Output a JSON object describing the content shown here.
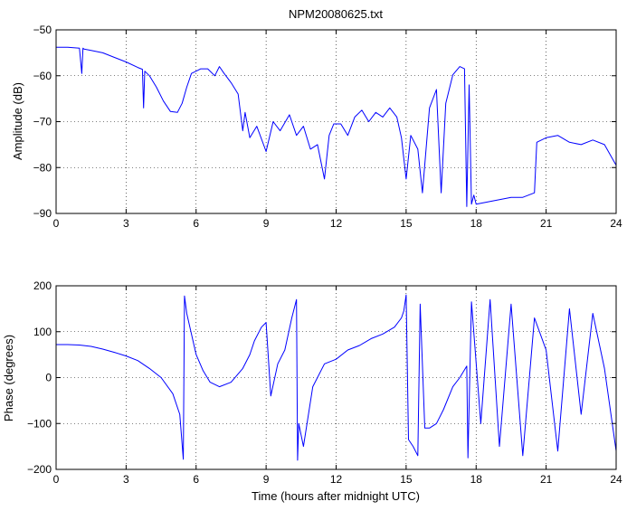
{
  "figure": {
    "title": "NPM20080625.txt",
    "xlabel": "Time (hours after midnight UTC)"
  },
  "chart_data": [
    {
      "type": "line",
      "title": "NPM20080625.txt",
      "xlabel": "",
      "ylabel": "Amplitude (dB)",
      "xlim": [
        0,
        24
      ],
      "ylim": [
        -90,
        -50
      ],
      "xticks": [
        0,
        3,
        6,
        9,
        12,
        15,
        18,
        21,
        24
      ],
      "yticks": [
        -90,
        -80,
        -70,
        -60,
        -50
      ],
      "grid": "dotted",
      "line_color": "#0000ff",
      "series": [
        {
          "x": [
            0,
            0.5,
            1.0,
            1.1,
            1.15,
            1.2,
            1.5,
            2.0,
            2.5,
            3.0,
            3.5,
            3.7,
            3.75,
            3.8,
            4.0,
            4.3,
            4.6,
            4.9,
            5.2,
            5.4,
            5.6,
            5.8,
            6.0,
            6.2,
            6.5,
            6.8,
            7.0,
            7.2,
            7.5,
            7.8,
            8.0,
            8.1,
            8.3,
            8.6,
            9.0,
            9.3,
            9.6,
            10.0,
            10.3,
            10.6,
            10.9,
            11.2,
            11.5,
            11.7,
            11.9,
            12.2,
            12.5,
            12.8,
            13.1,
            13.4,
            13.7,
            14.0,
            14.3,
            14.6,
            14.8,
            15.0,
            15.2,
            15.5,
            15.7,
            16.0,
            16.3,
            16.5,
            16.7,
            17.0,
            17.3,
            17.5,
            17.6,
            17.7,
            17.8,
            17.9,
            18.0,
            18.5,
            19.0,
            19.5,
            20.0,
            20.5,
            20.6,
            21.0,
            21.5,
            22.0,
            22.5,
            23.0,
            23.5,
            24.0
          ],
          "y": [
            -53.8,
            -53.8,
            -54.0,
            -59.5,
            -54.0,
            -54.2,
            -54.5,
            -55.0,
            -56.0,
            -57.0,
            -58.2,
            -58.6,
            -67.0,
            -59.0,
            -60.0,
            -62.5,
            -65.5,
            -67.8,
            -68.0,
            -66.0,
            -62.5,
            -59.5,
            -59.0,
            -58.5,
            -58.5,
            -60.0,
            -58.0,
            -59.5,
            -61.5,
            -64.0,
            -72.0,
            -68.0,
            -73.5,
            -71.0,
            -76.5,
            -70.0,
            -72.0,
            -68.5,
            -73.0,
            -71.0,
            -76.0,
            -75.0,
            -82.5,
            -73.0,
            -70.5,
            -70.5,
            -73.0,
            -69.0,
            -67.5,
            -70.0,
            -68.0,
            -69.0,
            -67.0,
            -69.0,
            -73.5,
            -82.5,
            -73.0,
            -76.0,
            -85.5,
            -67.0,
            -63.0,
            -85.5,
            -66.0,
            -59.8,
            -58.0,
            -58.5,
            -88.5,
            -62.0,
            -88.0,
            -86.0,
            -88.0,
            -87.5,
            -87.0,
            -86.5,
            -86.5,
            -85.5,
            -74.5,
            -73.5,
            -73.0,
            -74.5,
            -75.0,
            -74.0,
            -75.0,
            -79.5
          ]
        }
      ]
    },
    {
      "type": "line",
      "title": "",
      "xlabel": "Time (hours after midnight UTC)",
      "ylabel": "Phase (degrees)",
      "xlim": [
        0,
        24
      ],
      "ylim": [
        -200,
        200
      ],
      "xticks": [
        0,
        3,
        6,
        9,
        12,
        15,
        18,
        21,
        24
      ],
      "yticks": [
        -200,
        -100,
        0,
        100,
        200
      ],
      "grid": "dotted",
      "line_color": "#0000ff",
      "series": [
        {
          "x": [
            0,
            0.5,
            1.0,
            1.5,
            2.0,
            2.5,
            3.0,
            3.5,
            4.0,
            4.5,
            5.0,
            5.3,
            5.45,
            5.5,
            5.6,
            5.8,
            6.0,
            6.3,
            6.6,
            7.0,
            7.5,
            8.0,
            8.3,
            8.5,
            8.8,
            9.0,
            9.2,
            9.5,
            9.8,
            10.1,
            10.3,
            10.35,
            10.4,
            10.6,
            11.0,
            11.5,
            12.0,
            12.5,
            13.0,
            13.5,
            14.0,
            14.5,
            14.8,
            14.9,
            15.0,
            15.1,
            15.3,
            15.5,
            15.6,
            15.8,
            16.0,
            16.3,
            16.6,
            17.0,
            17.3,
            17.6,
            17.65,
            17.8,
            18.2,
            18.6,
            19.0,
            19.5,
            20.0,
            20.5,
            21.0,
            21.5,
            22.0,
            22.5,
            23.0,
            23.5,
            24.0
          ],
          "y": [
            72,
            72,
            71,
            68,
            62,
            55,
            47,
            37,
            20,
            0,
            -35,
            -80,
            -178,
            178,
            140,
            95,
            50,
            15,
            -10,
            -20,
            -10,
            20,
            50,
            80,
            110,
            120,
            -40,
            30,
            60,
            130,
            170,
            -180,
            -100,
            -150,
            -20,
            30,
            40,
            60,
            70,
            85,
            95,
            110,
            130,
            145,
            180,
            -135,
            -150,
            -170,
            160,
            -110,
            -110,
            -100,
            -70,
            -20,
            0,
            25,
            -175,
            165,
            -100,
            170,
            -150,
            160,
            -170,
            130,
            60,
            -160,
            150,
            -80,
            140,
            20,
            -160
          ]
        }
      ]
    }
  ]
}
